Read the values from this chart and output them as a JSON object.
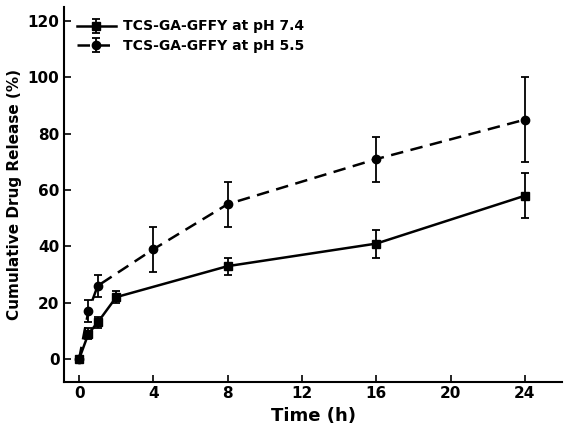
{
  "ph74_x": [
    0,
    0.5,
    1,
    2,
    8,
    16,
    24
  ],
  "ph74_y": [
    0,
    9,
    13,
    22,
    33,
    41,
    58
  ],
  "ph74_yerr": [
    0,
    2,
    2,
    2,
    3,
    5,
    8
  ],
  "ph55_x": [
    0,
    0.5,
    1,
    4,
    8,
    16,
    24
  ],
  "ph55_y": [
    0,
    17,
    26,
    39,
    55,
    71,
    85
  ],
  "ph55_yerr": [
    0,
    4,
    4,
    8,
    8,
    8,
    15
  ],
  "xlabel": "Time (h)",
  "ylabel": "Cumulative Drug Release (%)",
  "legend_ph74": "TCS-GA-GFFY at pH 7.4",
  "legend_ph55": "TCS-GA-GFFY at pH 5.5",
  "xlim": [
    -0.8,
    26
  ],
  "ylim": [
    -8,
    125
  ],
  "xticks": [
    0,
    4,
    8,
    12,
    16,
    20,
    24
  ],
  "yticks": [
    0,
    20,
    40,
    60,
    80,
    100,
    120
  ],
  "line_color": "#000000",
  "bg_color": "#ffffff"
}
